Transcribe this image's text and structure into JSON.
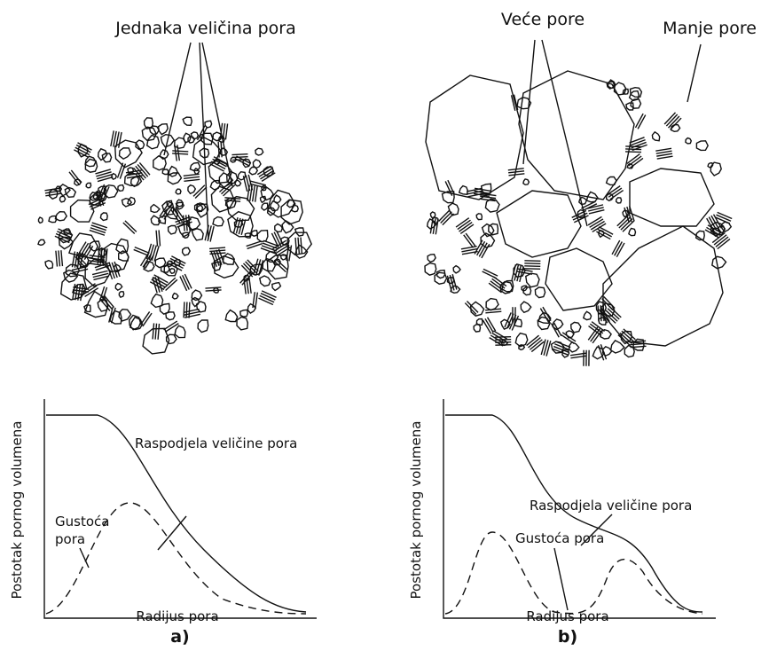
{
  "panels": [
    {
      "top_labels": [
        "Jednaka veličina pora"
      ],
      "chart": {
        "y_label": "Postotak pornog volumena",
        "x_label": "Radijus pora",
        "curve_labels": {
          "distribution": "Raspodjela veličine pora",
          "density": [
            "Gustoća",
            "pora"
          ]
        }
      },
      "caption": "a)"
    },
    {
      "top_labels": [
        "Veće pore",
        "Manje pore"
      ],
      "chart": {
        "y_label": "Postotak pornog volumena",
        "x_label": "Radijus pora",
        "curve_labels": {
          "distribution": "Raspodjela veličine pora",
          "density": [
            "Gustoća pora"
          ]
        }
      },
      "caption": "b)"
    }
  ]
}
